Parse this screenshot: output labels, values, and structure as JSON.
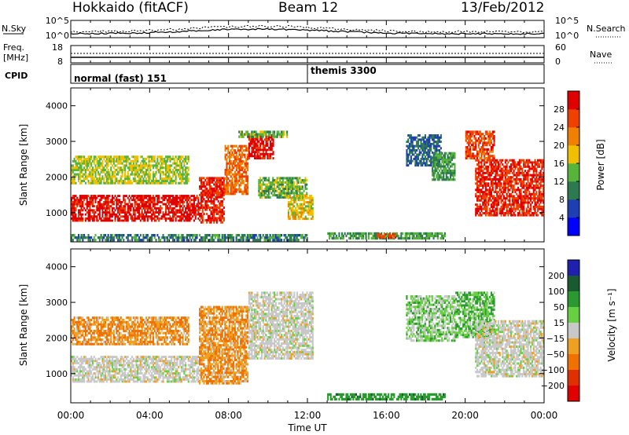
{
  "header": {
    "station": "Hokkaido (fitACF)",
    "beam": "Beam 12",
    "date": "13/Feb/2012"
  },
  "noise_panel": {
    "left_label": "N.Sky",
    "right_label": "N.Search",
    "left_ticks": [
      "10^5",
      "10^0"
    ],
    "right_ticks": [
      "10^5",
      "10^0"
    ]
  },
  "freq_panel": {
    "left_label_1": "Freq.",
    "left_label_2": "[MHz]",
    "left_ticks": [
      "18",
      "8"
    ],
    "right_label": "Nave",
    "right_ticks": [
      "60",
      "0"
    ]
  },
  "cpid_panel": {
    "label": "CPID",
    "segments": [
      {
        "name": "normal (fast) 151",
        "start_hour": 0
      },
      {
        "name": "themis 3300",
        "start_hour": 12
      }
    ]
  },
  "time_axis": {
    "label": "Time UT",
    "ticks": [
      "00:00",
      "04:00",
      "08:00",
      "12:00",
      "16:00",
      "20:00",
      "00:00"
    ]
  },
  "chart_data": [
    {
      "type": "heatmap",
      "parameter": "power",
      "ylabel": "Slant Range [km]",
      "xlabel": "Time UT",
      "xlim_hours": [
        0,
        24
      ],
      "ylim_km": [
        180,
        4500
      ],
      "y_ticks": [
        "1000",
        "2000",
        "3000",
        "4000"
      ],
      "colorbar": {
        "label": "Power [dB]",
        "ticks": [
          "4",
          "8",
          "12",
          "16",
          "20",
          "24",
          "28"
        ],
        "range": [
          0,
          32
        ]
      },
      "regions": [
        {
          "t0": 0,
          "t1": 6.5,
          "r0": 750,
          "r1": 1500,
          "value": 30
        },
        {
          "t0": 6.5,
          "t1": 7.8,
          "r0": 700,
          "r1": 2000,
          "value": 28
        },
        {
          "t0": 7.8,
          "t1": 9.0,
          "r0": 1500,
          "r1": 2900,
          "value": 24
        },
        {
          "t0": 9.0,
          "t1": 10.3,
          "r0": 2500,
          "r1": 3200,
          "value": 30
        },
        {
          "t0": 8.5,
          "t1": 11.0,
          "r0": 3100,
          "r1": 3300,
          "value": 14
        },
        {
          "t0": 9.5,
          "t1": 12.0,
          "r0": 1400,
          "r1": 2000,
          "value": 14
        },
        {
          "t0": 11.0,
          "t1": 12.3,
          "r0": 800,
          "r1": 1500,
          "value": 18
        },
        {
          "t0": 13.0,
          "t1": 19.0,
          "r0": 250,
          "r1": 450,
          "value": 12
        },
        {
          "t0": 15.5,
          "t1": 16.5,
          "r0": 280,
          "r1": 420,
          "value": 26
        },
        {
          "t0": 17.0,
          "t1": 18.8,
          "r0": 2300,
          "r1": 3200,
          "value": 8
        },
        {
          "t0": 18.3,
          "t1": 19.5,
          "r0": 1900,
          "r1": 2700,
          "value": 12
        },
        {
          "t0": 20.0,
          "t1": 21.5,
          "r0": 2500,
          "r1": 3300,
          "value": 26
        },
        {
          "t0": 20.5,
          "t1": 24.0,
          "r0": 900,
          "r1": 2500,
          "value": 28
        },
        {
          "t0": 0,
          "t1": 6.0,
          "r0": 1800,
          "r1": 2600,
          "value": 16
        },
        {
          "t0": 0,
          "t1": 12.0,
          "r0": 200,
          "r1": 400,
          "value": 10
        }
      ]
    },
    {
      "type": "heatmap",
      "parameter": "velocity",
      "ylabel": "Slant Range [km]",
      "xlabel": "Time UT",
      "xlim_hours": [
        0,
        24
      ],
      "ylim_km": [
        180,
        4500
      ],
      "y_ticks": [
        "1000",
        "2000",
        "3000",
        "4000"
      ],
      "colorbar": {
        "label": "Velocity [m s⁻¹]",
        "ticks": [
          "200",
          "100",
          "50",
          "15",
          "−15",
          "−50",
          "−100",
          "−200"
        ]
      },
      "regions": [
        {
          "t0": 0,
          "t1": 6.5,
          "r0": 750,
          "r1": 1500,
          "value": 0
        },
        {
          "t0": 6.5,
          "t1": 9.0,
          "r0": 700,
          "r1": 2900,
          "value": -30
        },
        {
          "t0": 9.0,
          "t1": 12.3,
          "r0": 1400,
          "r1": 3300,
          "value": 0
        },
        {
          "t0": 13.0,
          "t1": 19.0,
          "r0": 250,
          "r1": 450,
          "value": 60
        },
        {
          "t0": 17.0,
          "t1": 19.5,
          "r0": 1900,
          "r1": 3200,
          "value": 20
        },
        {
          "t0": 19.5,
          "t1": 21.5,
          "r0": 2000,
          "r1": 3300,
          "value": 30
        },
        {
          "t0": 20.5,
          "t1": 24.0,
          "r0": 900,
          "r1": 2500,
          "value": 0
        },
        {
          "t0": 0,
          "t1": 6.0,
          "r0": 1800,
          "r1": 2600,
          "value": -30
        }
      ]
    }
  ],
  "colors": {
    "power_scale": [
      "#0000ff",
      "#1e3fb4",
      "#2d7a50",
      "#57b43a",
      "#f0c000",
      "#f08000",
      "#f04000",
      "#e00000"
    ],
    "velocity_scale": [
      "#2020b0",
      "#1a5a30",
      "#2a9a30",
      "#66d040",
      "#c8c8c8",
      "#f0a020",
      "#f07000",
      "#e03000",
      "#e00000"
    ]
  }
}
